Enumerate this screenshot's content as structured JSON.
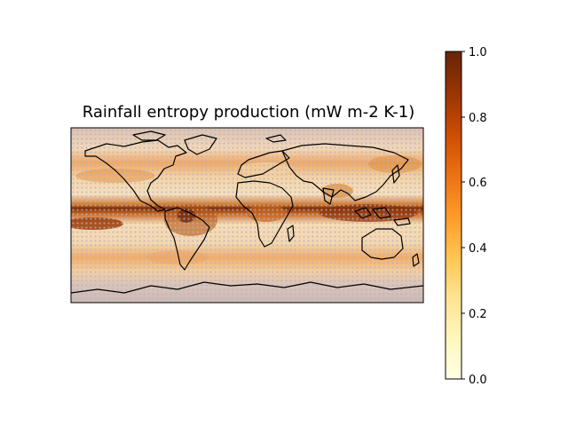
{
  "title": "Rainfall entropy production (mW m-2 K-1)",
  "colorbar": {
    "ticks": [
      "1.0",
      "0.8",
      "0.6",
      "0.4",
      "0.2",
      "0.0"
    ],
    "range": [
      0.0,
      1.0
    ],
    "colormap": "YlOrBr",
    "stops": [
      "#ffffe5",
      "#fff7bc",
      "#fee391",
      "#fec44f",
      "#fe9929",
      "#ec7014",
      "#cc4c02",
      "#993404",
      "#662506"
    ]
  },
  "map": {
    "projection": "PlateCarree",
    "extent": [
      -180,
      180,
      -90,
      90
    ],
    "stippling": "dotted grid over low-significance areas",
    "coastline_color": "#000000"
  }
}
